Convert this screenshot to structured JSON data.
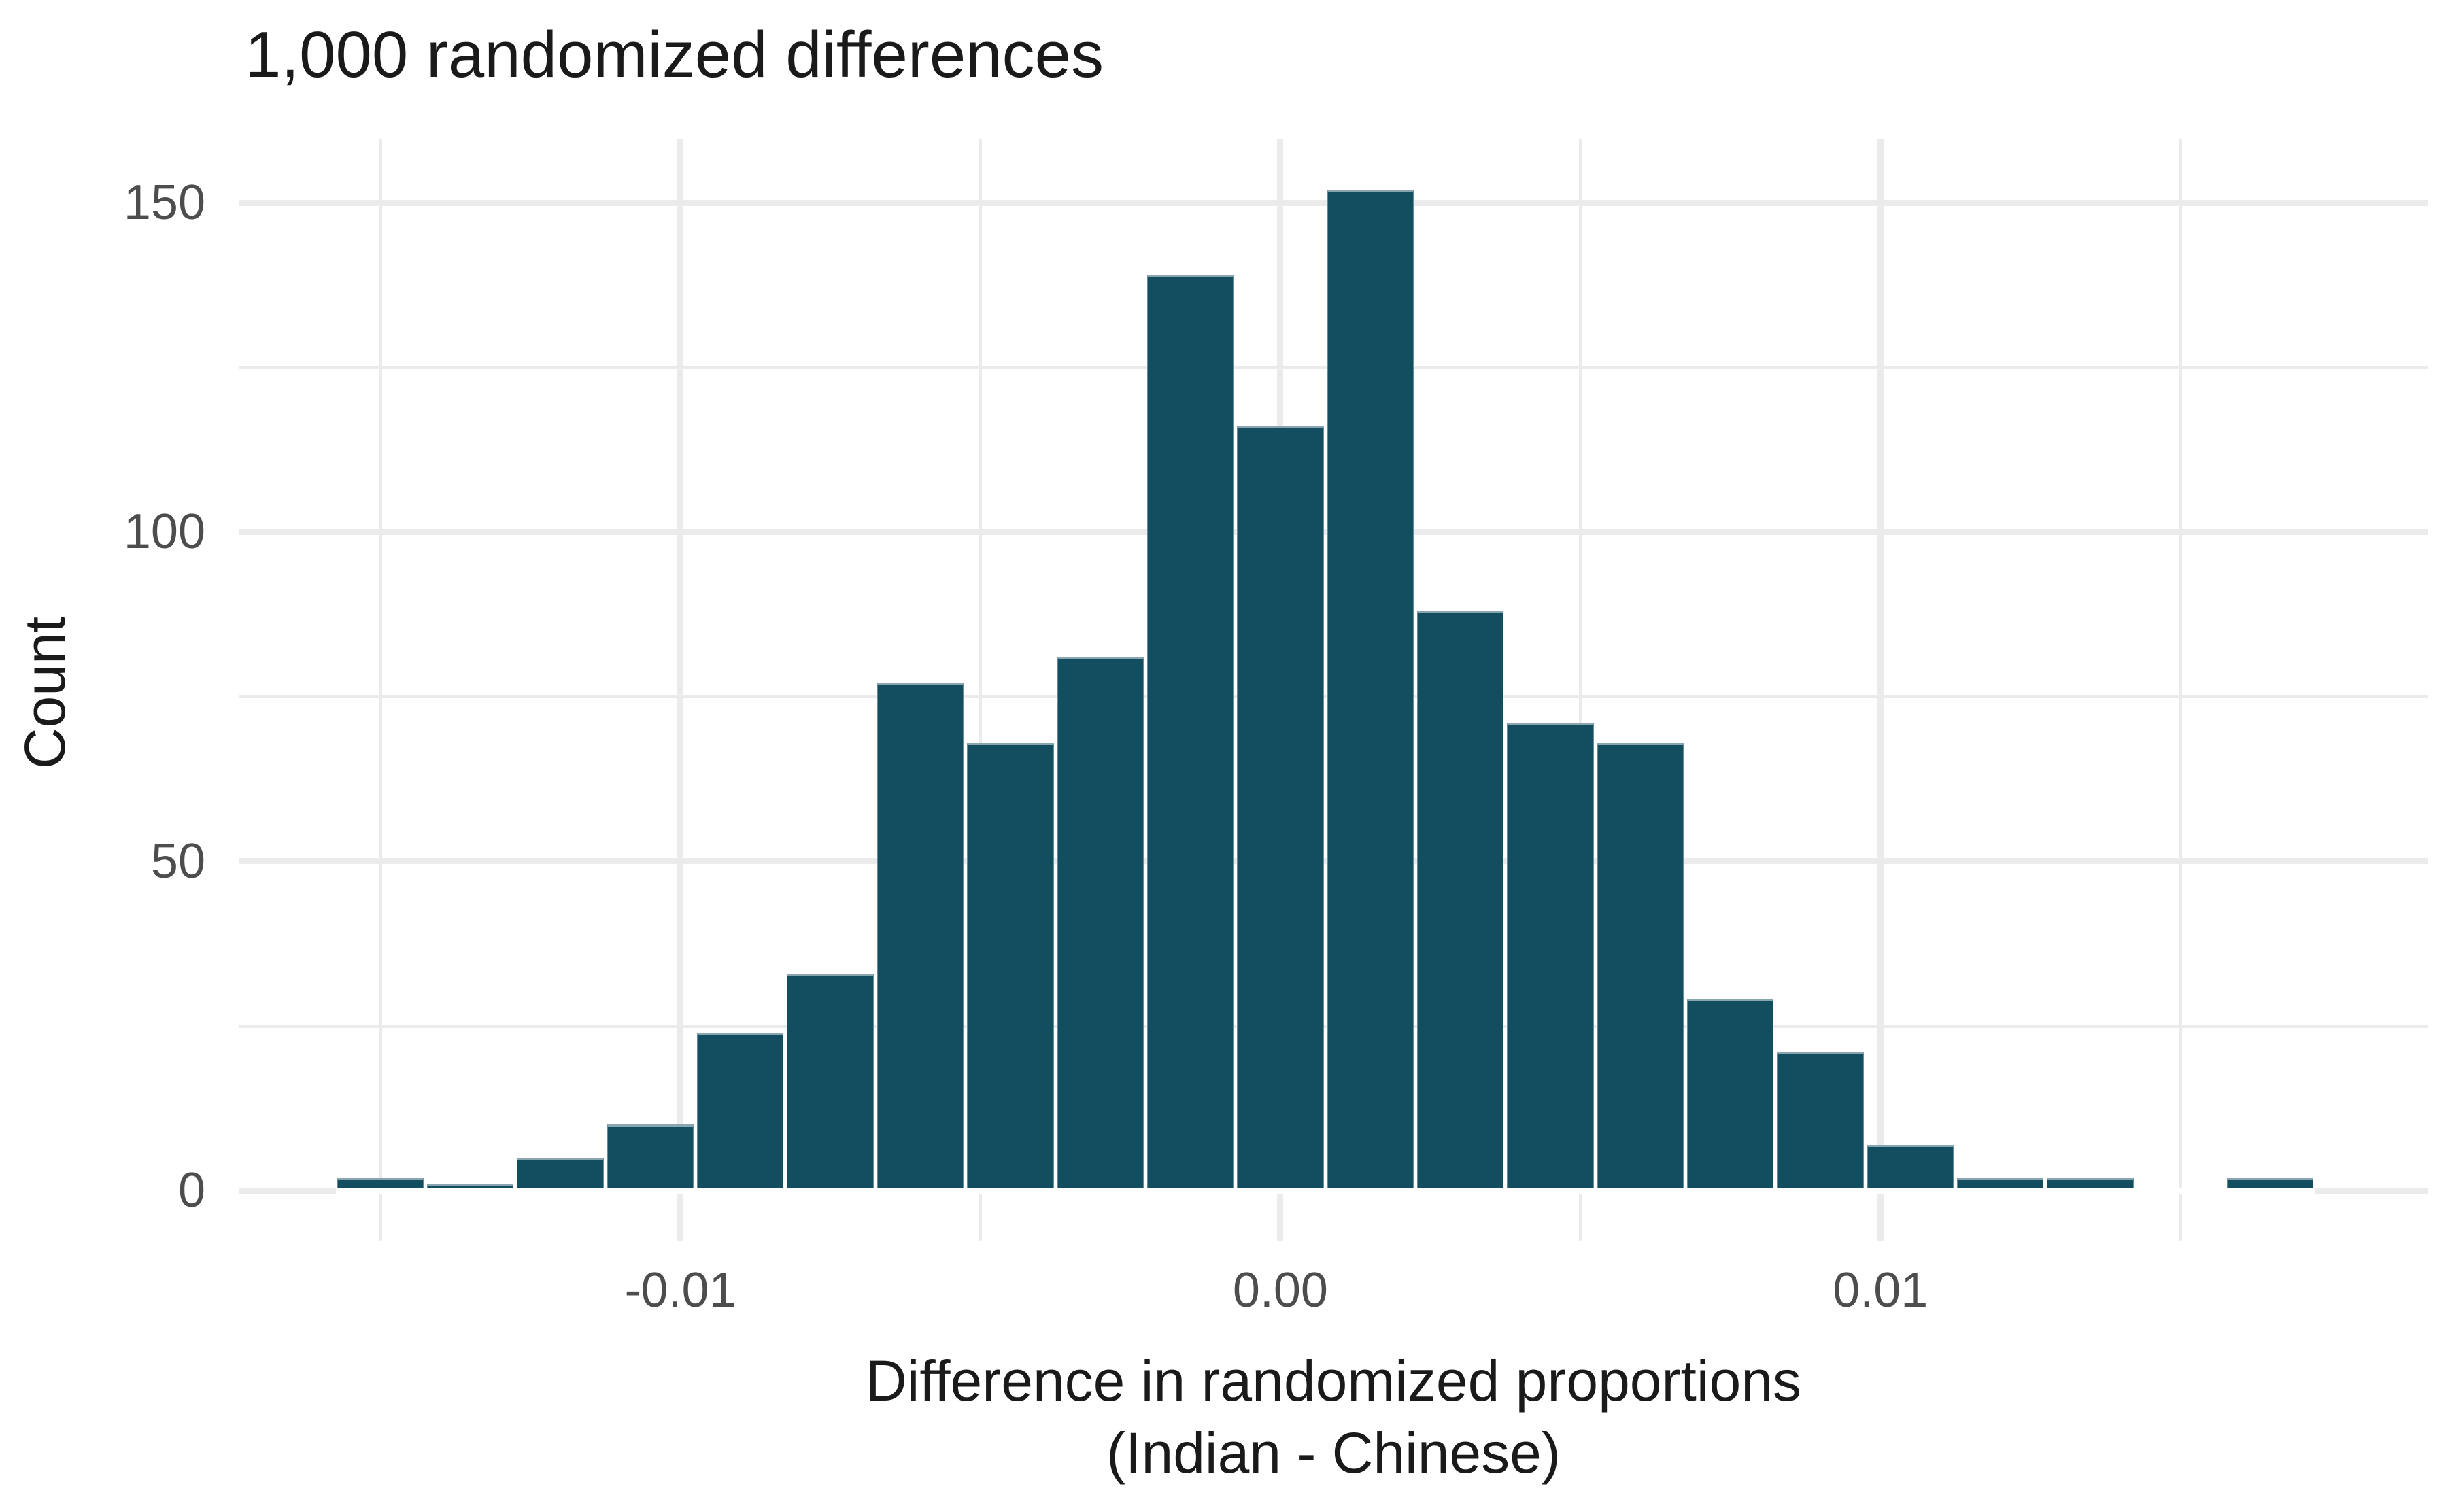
{
  "chart_data": {
    "type": "bar",
    "subtype": "histogram",
    "title": "1,000 randomized differences",
    "ylabel": "Count",
    "xlabel_line1": "Difference in randomized proportions",
    "xlabel_line2": "(Indian - Chinese)",
    "bins": {
      "start": -0.01575,
      "width": 0.0015
    },
    "bin_centers": [
      -0.015,
      -0.0135,
      -0.012,
      -0.0105,
      -0.009,
      -0.0075,
      -0.006,
      -0.0045,
      -0.003,
      -0.0015,
      0.0,
      0.0015,
      0.003,
      0.0045,
      0.006,
      0.0075,
      0.009,
      0.0105,
      0.012,
      0.0135,
      0.015,
      0.0165
    ],
    "counts": [
      2,
      1,
      5,
      10,
      24,
      33,
      77,
      68,
      81,
      139,
      116,
      152,
      88,
      71,
      68,
      29,
      21,
      7,
      2,
      2,
      0,
      2
    ],
    "total_count": 1000,
    "x_ticks": [
      {
        "value": -0.01,
        "label": "-0.01"
      },
      {
        "value": 0.0,
        "label": "0.00"
      },
      {
        "value": 0.01,
        "label": "0.01"
      }
    ],
    "x_minor_ticks": [
      -0.015,
      -0.005,
      0.005,
      0.015
    ],
    "y_ticks": [
      {
        "value": 0,
        "label": "0"
      },
      {
        "value": 50,
        "label": "50"
      },
      {
        "value": 100,
        "label": "100"
      },
      {
        "value": 150,
        "label": "150"
      }
    ],
    "y_minor_ticks": [
      25,
      75,
      125
    ],
    "xlim": [
      -0.01735,
      0.01912
    ],
    "ylim": [
      -7.6,
      159.6
    ],
    "grid": "on",
    "legend_position": "none",
    "colors": {
      "bar_fill": "#134D60",
      "bar_stroke": "rgba(255,255,255,0.5)",
      "gridline": "#EBEBEB",
      "tick_label": "#4D4D4D",
      "text": "#1A1A1A",
      "background": "#FFFFFF"
    }
  }
}
